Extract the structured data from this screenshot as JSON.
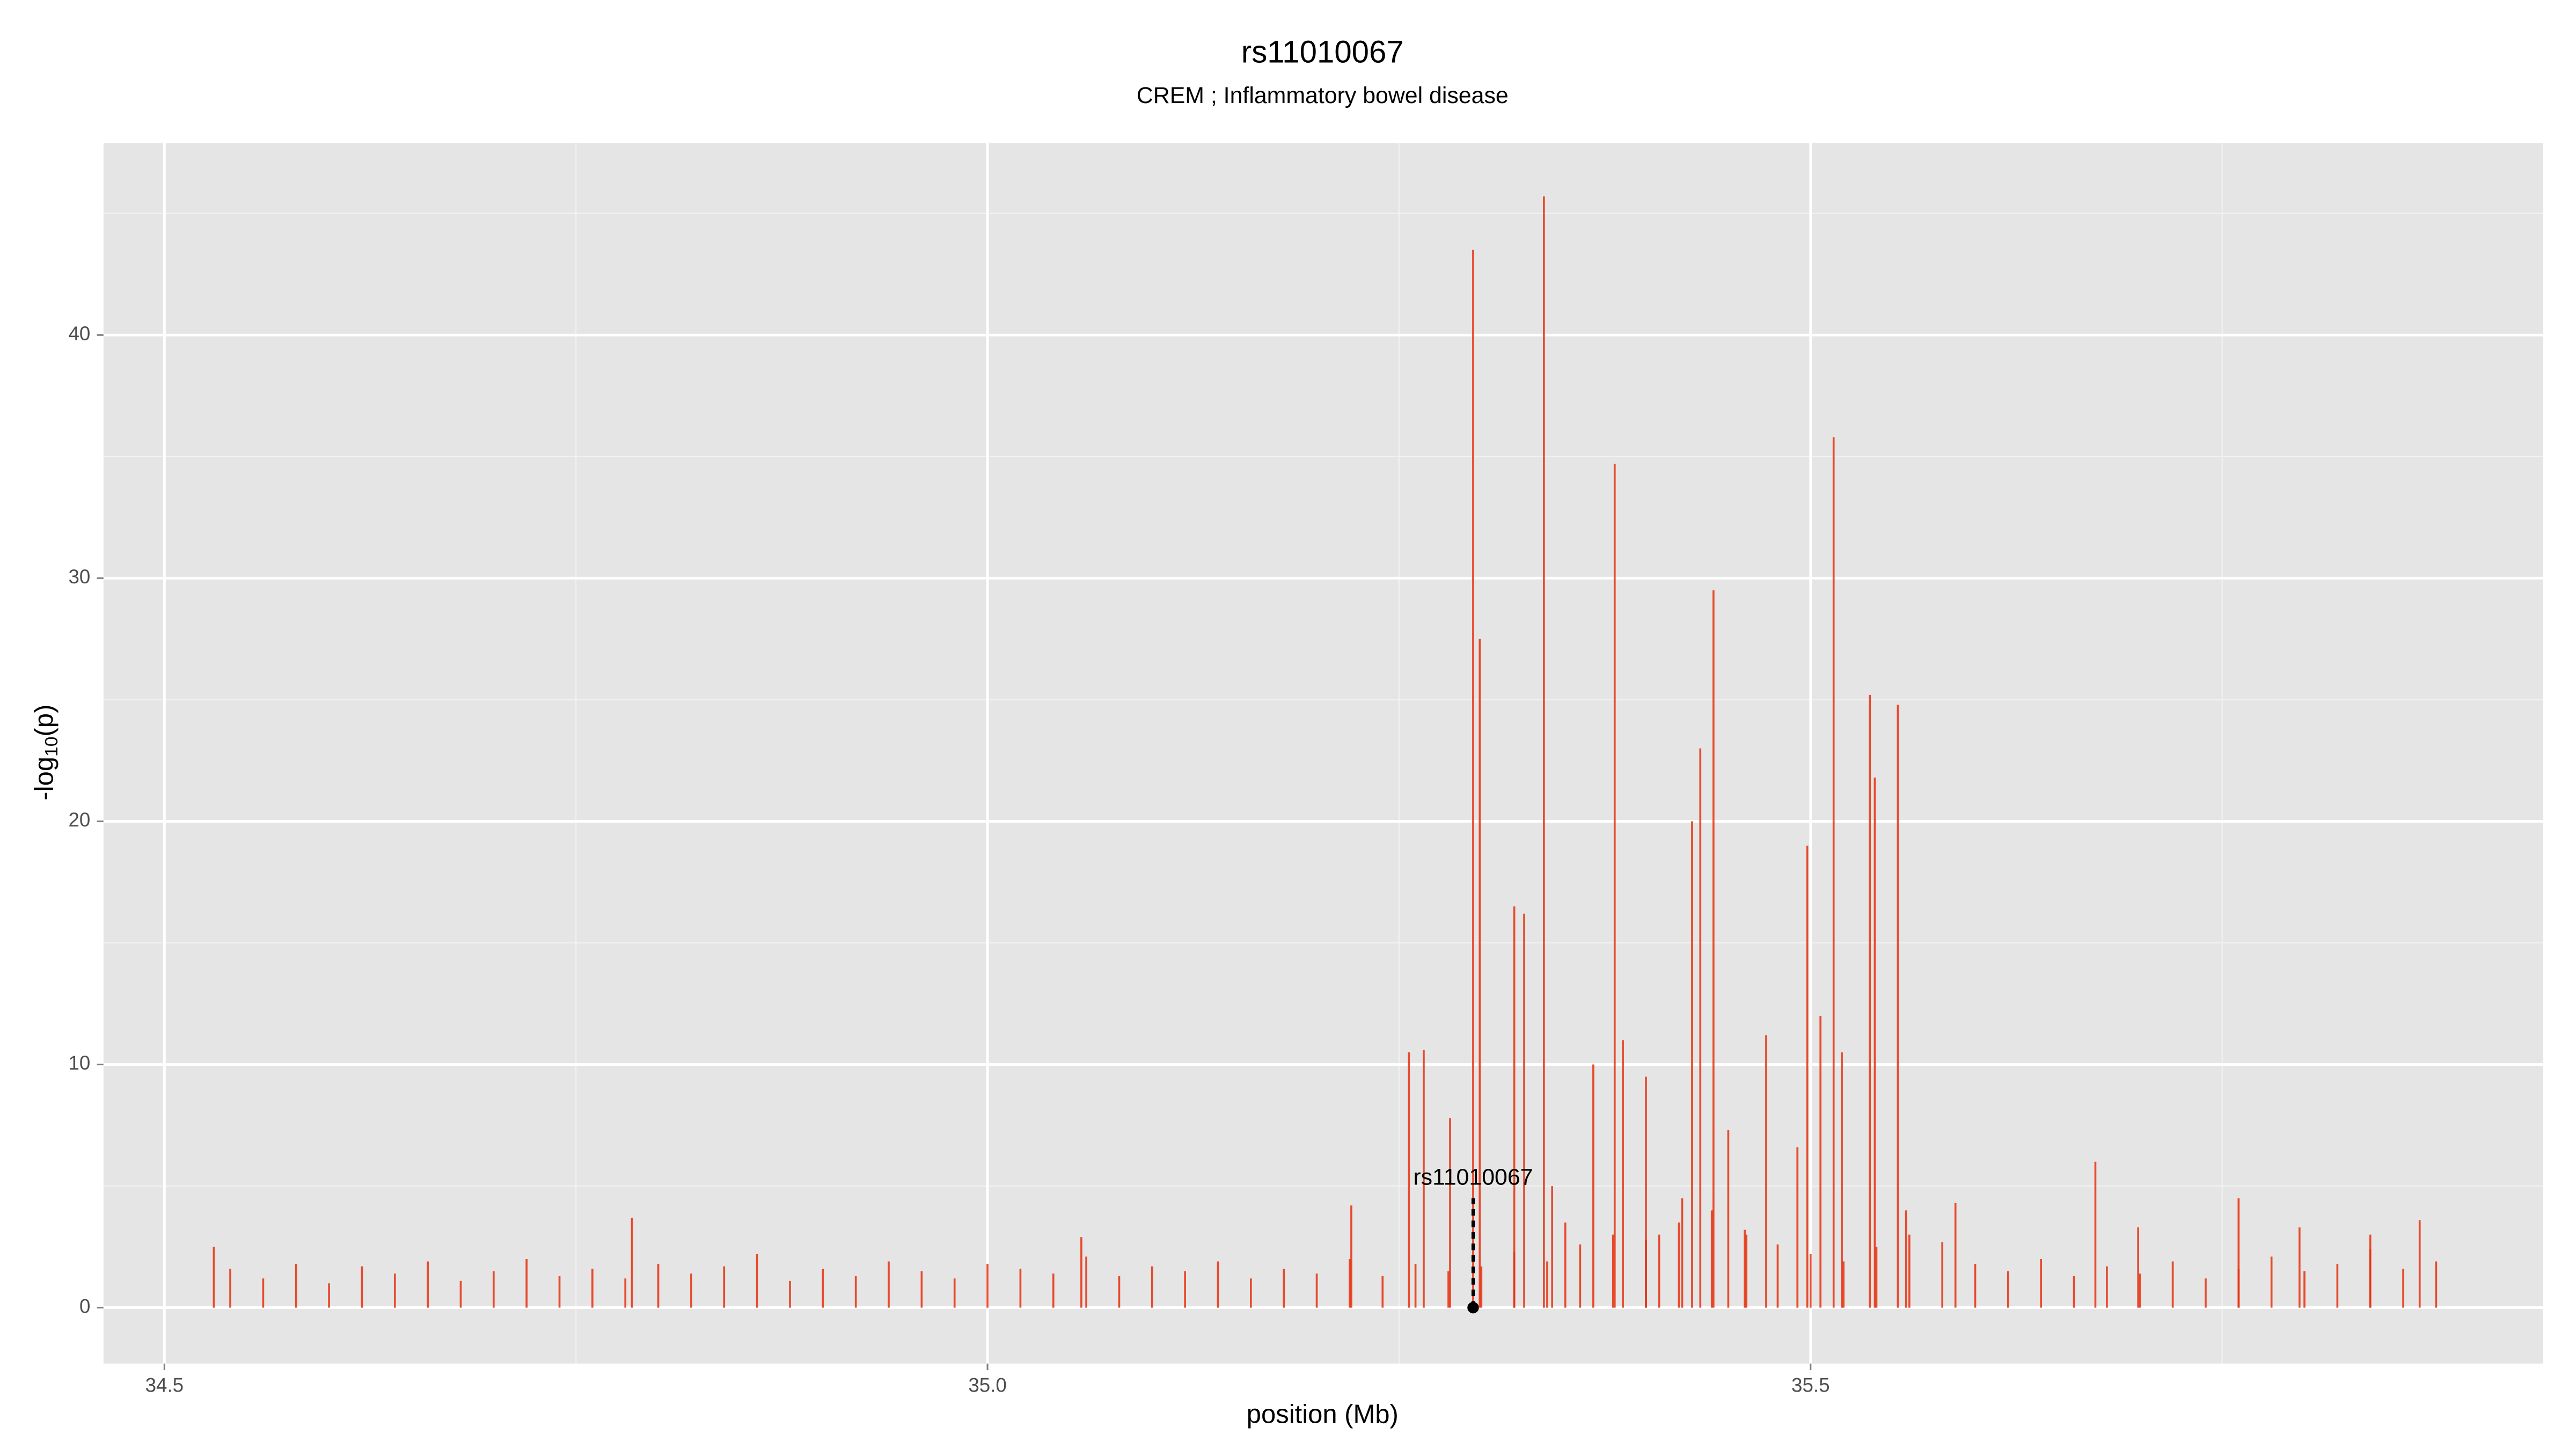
{
  "chart_data": {
    "type": "spike",
    "title": "rs11010067",
    "subtitle": "CREM ; Inflammatory bowel disease",
    "x_label": "position (Mb)",
    "y_label": {
      "prefix": "-log",
      "sub": "10",
      "suffix": "(p)"
    },
    "color": "#e8300e",
    "grid": true,
    "xlim": [
      34.463,
      35.945
    ],
    "ylim": [
      -2.3,
      47.9
    ],
    "xticks": [
      34.5,
      {
        "value": 35,
        "label": "35.0"
      },
      35.5
    ],
    "yticks": [
      0,
      10,
      20,
      30,
      40
    ],
    "xminor": [
      34.75,
      35.25,
      35.75
    ],
    "yminor": [
      5,
      15,
      25,
      35,
      45
    ],
    "x": [
      34.54,
      34.56,
      34.58,
      34.6,
      34.62,
      34.64,
      34.66,
      34.68,
      34.7,
      34.72,
      34.74,
      34.76,
      34.78,
      34.8,
      34.82,
      34.84,
      34.86,
      34.88,
      34.9,
      34.92,
      34.94,
      34.96,
      34.98,
      35,
      35.02,
      35.04,
      35.06,
      35.08,
      35.1,
      35.12,
      35.14,
      35.16,
      35.18,
      35.2,
      35.22,
      35.24,
      35.26,
      35.28,
      35.3,
      35.32,
      35.34,
      35.36,
      35.38,
      35.4,
      35.42,
      35.44,
      35.46,
      35.48,
      35.5,
      35.52,
      35.54,
      35.56,
      35.58,
      35.6,
      35.62,
      35.64,
      35.66,
      35.68,
      35.7,
      35.72,
      35.74,
      35.76,
      35.78,
      35.8,
      35.82,
      35.84,
      35.86,
      35.88,
      35.295,
      35.299,
      35.338,
      35.32,
      35.326,
      35.381,
      35.441,
      35.433,
      35.45,
      35.473,
      35.498,
      35.514,
      35.506,
      35.536,
      35.539,
      35.553,
      35.519,
      35.256,
      35.265,
      35.281,
      35.368,
      35.4,
      35.386,
      35.673,
      35.588,
      35.76,
      35.84,
      35.87,
      34.784,
      35.057,
      35.221,
      34.53,
      35.699,
      35.797,
      35.422,
      35.428,
      35.461,
      35.492,
      35.558,
      35.343,
      35.351,
      35.408
    ],
    "values": [
      1.6,
      1.2,
      1.8,
      1.0,
      1.7,
      1.4,
      1.9,
      1.1,
      1.5,
      2.0,
      1.3,
      1.6,
      1.2,
      1.8,
      1.4,
      1.7,
      2.2,
      1.1,
      1.6,
      1.3,
      1.9,
      1.5,
      1.2,
      1.8,
      1.6,
      1.4,
      2.1,
      1.3,
      1.7,
      1.5,
      1.9,
      1.2,
      1.6,
      1.4,
      2.0,
      1.3,
      1.8,
      1.5,
      1.7,
      2.3,
      1.9,
      2.6,
      3.0,
      2.8,
      3.5,
      4.0,
      3.2,
      2.6,
      2.2,
      1.9,
      2.5,
      3.0,
      2.7,
      1.8,
      1.5,
      2.0,
      1.3,
      1.7,
      1.4,
      1.9,
      1.2,
      1.6,
      2.1,
      1.5,
      1.8,
      2.4,
      1.6,
      1.9,
      43.5,
      27.5,
      45.7,
      16.5,
      16.2,
      34.7,
      29.5,
      23,
      7.3,
      11.2,
      19,
      35.8,
      12,
      25.2,
      21.8,
      24.8,
      10.5,
      10.5,
      10.6,
      7.8,
      10,
      9.5,
      11,
      6,
      4.3,
      4.5,
      3,
      3.6,
      3.7,
      2.9,
      4.2,
      2.5,
      3.3,
      3.3,
      4.5,
      20,
      3,
      6.6,
      4,
      5,
      3.5,
      3
    ],
    "annotation": {
      "text": "rs11010067",
      "x": 35.295,
      "y": 0,
      "line_top": 4.5
    }
  }
}
